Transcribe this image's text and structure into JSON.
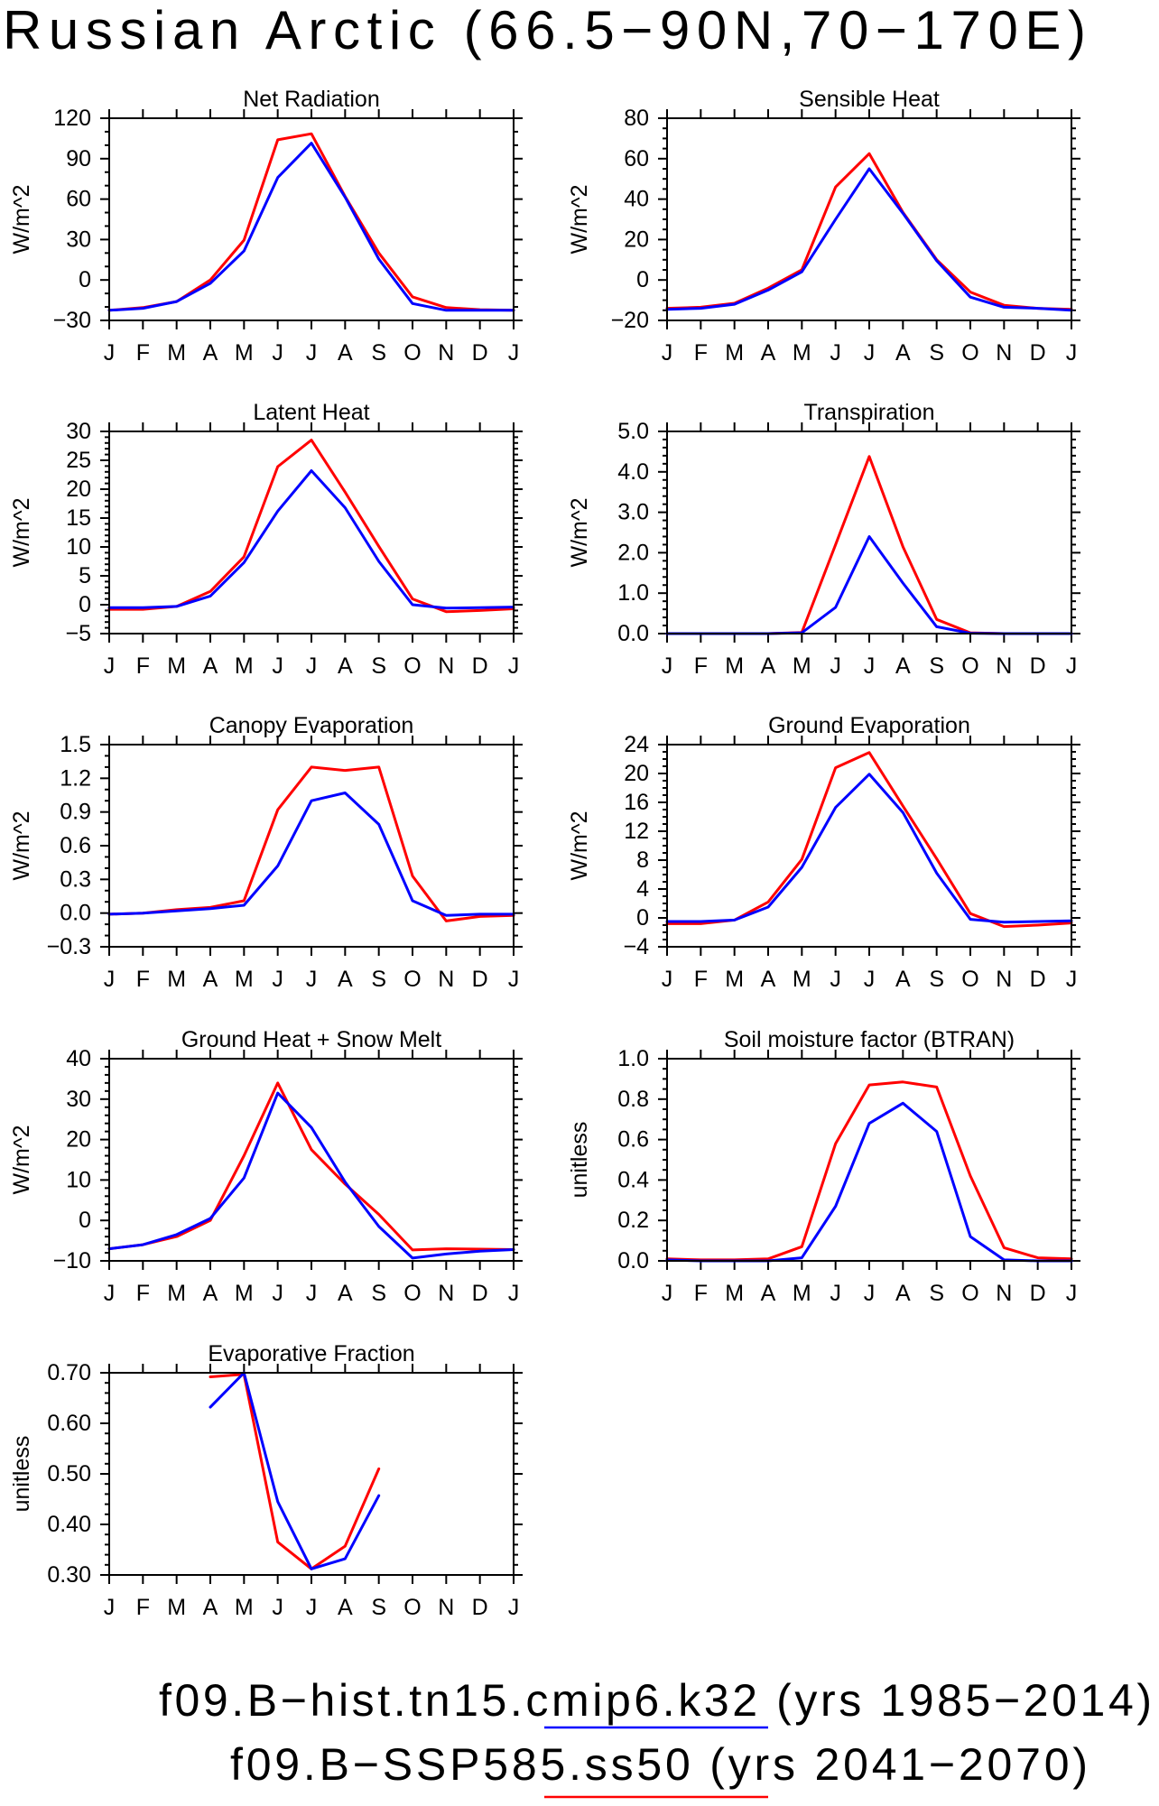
{
  "title": "Russian Arctic (66.5−90N,70−170E)",
  "legend": {
    "placement": "bottom",
    "entries": [
      {
        "label": "f09.B−hist.tn15.cmip6.k32 (yrs 1985−2014)",
        "color": "#0000ff"
      },
      {
        "label": "f09.B−SSP585.ss50 (yrs 2041−2070)",
        "color": "#ff0000"
      }
    ]
  },
  "chart_data": [
    {
      "type": "line",
      "title": "Net Radiation",
      "ylabel": "W/m^2",
      "categories": [
        "J",
        "F",
        "M",
        "A",
        "M",
        "J",
        "J",
        "A",
        "S",
        "O",
        "N",
        "D",
        "J"
      ],
      "ylim": [
        -30,
        120
      ],
      "yticks": [
        -30,
        0,
        30,
        60,
        90,
        120
      ],
      "ytick_labels": [
        "−30",
        "0",
        "30",
        "60",
        "90",
        "120"
      ],
      "grid": false,
      "series": [
        {
          "color": "#0000ff",
          "values": [
            -22.5,
            -21,
            -16,
            -2.5,
            21.5,
            76,
            101.5,
            61.5,
            15.5,
            -17.5,
            -22.5,
            -22.5,
            -22.5
          ]
        },
        {
          "color": "#ff0000",
          "values": [
            -22.5,
            -20.5,
            -16,
            0,
            29.5,
            104,
            108.5,
            62,
            20,
            -12.5,
            -20.5,
            -22,
            -22.5
          ]
        }
      ]
    },
    {
      "type": "line",
      "title": "Sensible Heat",
      "ylabel": "W/m^2",
      "categories": [
        "J",
        "F",
        "M",
        "A",
        "M",
        "J",
        "J",
        "A",
        "S",
        "O",
        "N",
        "D",
        "J"
      ],
      "ylim": [
        -20,
        80
      ],
      "yticks": [
        -20,
        0,
        20,
        40,
        60,
        80
      ],
      "ytick_labels": [
        "−20",
        "0",
        "20",
        "40",
        "60",
        "80"
      ],
      "grid": false,
      "series": [
        {
          "color": "#0000ff",
          "values": [
            -14.5,
            -14,
            -12,
            -5,
            4,
            30,
            55,
            33,
            9.5,
            -8.5,
            -13.5,
            -14,
            -15
          ]
        },
        {
          "color": "#ff0000",
          "values": [
            -14,
            -13.5,
            -11.5,
            -4,
            5,
            46,
            62.5,
            33.5,
            10,
            -6,
            -12.5,
            -14,
            -14.5
          ]
        }
      ]
    },
    {
      "type": "line",
      "title": "Latent Heat",
      "ylabel": "W/m^2",
      "categories": [
        "J",
        "F",
        "M",
        "A",
        "M",
        "J",
        "J",
        "A",
        "S",
        "O",
        "N",
        "D",
        "J"
      ],
      "ylim": [
        -5,
        30
      ],
      "yticks": [
        -5,
        0,
        5,
        10,
        15,
        20,
        25,
        30
      ],
      "ytick_labels": [
        "−5",
        "0",
        "5",
        "10",
        "15",
        "20",
        "25",
        "30"
      ],
      "grid": false,
      "series": [
        {
          "color": "#0000ff",
          "values": [
            -0.5,
            -0.5,
            -0.3,
            1.5,
            7.3,
            16.2,
            23.2,
            16.8,
            7.5,
            0,
            -0.6,
            -0.5,
            -0.4
          ]
        },
        {
          "color": "#ff0000",
          "values": [
            -0.8,
            -0.8,
            -0.3,
            2.3,
            8.3,
            23.9,
            28.5,
            19.5,
            10.1,
            1,
            -1.2,
            -1.0,
            -0.7
          ]
        }
      ]
    },
    {
      "type": "line",
      "title": "Transpiration",
      "ylabel": "W/m^2",
      "categories": [
        "J",
        "F",
        "M",
        "A",
        "M",
        "J",
        "J",
        "A",
        "S",
        "O",
        "N",
        "D",
        "J"
      ],
      "ylim": [
        0,
        5
      ],
      "yticks": [
        0,
        1,
        2,
        3,
        4,
        5
      ],
      "ytick_labels": [
        "0.0",
        "1.0",
        "2.0",
        "3.0",
        "4.0",
        "5.0"
      ],
      "grid": false,
      "series": [
        {
          "color": "#0000ff",
          "values": [
            0,
            0,
            0,
            0,
            0.02,
            0.65,
            2.4,
            1.25,
            0.17,
            0.01,
            0,
            0,
            0
          ]
        },
        {
          "color": "#ff0000",
          "values": [
            0,
            0,
            0,
            0,
            0.03,
            2.2,
            4.38,
            2.15,
            0.35,
            0.02,
            0,
            0,
            0
          ]
        }
      ]
    },
    {
      "type": "line",
      "title": "Canopy Evaporation",
      "ylabel": "W/m^2",
      "categories": [
        "J",
        "F",
        "M",
        "A",
        "M",
        "J",
        "J",
        "A",
        "S",
        "O",
        "N",
        "D",
        "J"
      ],
      "ylim": [
        -0.3,
        1.5
      ],
      "yticks": [
        -0.3,
        0,
        0.3,
        0.6,
        0.9,
        1.2,
        1.5
      ],
      "ytick_labels": [
        "−0.3",
        "0.0",
        "0.3",
        "0.6",
        "0.9",
        "1.2",
        "1.5"
      ],
      "grid": false,
      "series": [
        {
          "color": "#0000ff",
          "values": [
            -0.01,
            0,
            0.02,
            0.04,
            0.07,
            0.42,
            1.0,
            1.07,
            0.79,
            0.11,
            -0.02,
            -0.01,
            -0.01
          ]
        },
        {
          "color": "#ff0000",
          "values": [
            -0.01,
            0,
            0.03,
            0.05,
            0.11,
            0.92,
            1.3,
            1.27,
            1.3,
            0.33,
            -0.07,
            -0.03,
            -0.02
          ]
        }
      ]
    },
    {
      "type": "line",
      "title": "Ground Evaporation",
      "ylabel": "W/m^2",
      "categories": [
        "J",
        "F",
        "M",
        "A",
        "M",
        "J",
        "J",
        "A",
        "S",
        "O",
        "N",
        "D",
        "J"
      ],
      "ylim": [
        -4,
        24
      ],
      "yticks": [
        -4,
        0,
        4,
        8,
        12,
        16,
        20,
        24
      ],
      "ytick_labels": [
        "−4",
        "0",
        "4",
        "8",
        "12",
        "16",
        "20",
        "24"
      ],
      "grid": false,
      "series": [
        {
          "color": "#0000ff",
          "values": [
            -0.5,
            -0.5,
            -0.3,
            1.5,
            7.0,
            15.3,
            19.9,
            14.6,
            6.2,
            -0.2,
            -0.6,
            -0.5,
            -0.4
          ]
        },
        {
          "color": "#ff0000",
          "values": [
            -0.8,
            -0.8,
            -0.3,
            2.2,
            8.1,
            20.8,
            22.9,
            15.5,
            8.2,
            0.6,
            -1.2,
            -1.0,
            -0.7
          ]
        }
      ]
    },
    {
      "type": "line",
      "title": "Ground Heat + Snow Melt",
      "ylabel": "W/m^2",
      "categories": [
        "J",
        "F",
        "M",
        "A",
        "M",
        "J",
        "J",
        "A",
        "S",
        "O",
        "N",
        "D",
        "J"
      ],
      "ylim": [
        -10,
        40
      ],
      "yticks": [
        -10,
        0,
        10,
        20,
        30,
        40
      ],
      "ytick_labels": [
        "−10",
        "0",
        "10",
        "20",
        "30",
        "40"
      ],
      "grid": false,
      "series": [
        {
          "color": "#0000ff",
          "values": [
            -7,
            -6,
            -3.5,
            0.5,
            10.5,
            31.5,
            23,
            9.5,
            -1.5,
            -9.3,
            -8.3,
            -7.6,
            -7.2
          ]
        },
        {
          "color": "#ff0000",
          "values": [
            -7,
            -6,
            -4,
            0,
            16,
            34,
            17.5,
            9,
            1.5,
            -7.3,
            -7,
            -7.1,
            -7.2
          ]
        }
      ]
    },
    {
      "type": "line",
      "title": "Soil moisture factor (BTRAN)",
      "ylabel": "unitless",
      "categories": [
        "J",
        "F",
        "M",
        "A",
        "M",
        "J",
        "J",
        "A",
        "S",
        "O",
        "N",
        "D",
        "J"
      ],
      "ylim": [
        0,
        1
      ],
      "yticks": [
        0,
        0.2,
        0.4,
        0.6,
        0.8,
        1.0
      ],
      "ytick_labels": [
        "0.0",
        "0.2",
        "0.4",
        "0.6",
        "0.8",
        "1.0"
      ],
      "grid": false,
      "series": [
        {
          "color": "#0000ff",
          "values": [
            0.005,
            0,
            0,
            0,
            0.015,
            0.27,
            0.68,
            0.78,
            0.64,
            0.12,
            0.005,
            0,
            0
          ]
        },
        {
          "color": "#ff0000",
          "values": [
            0.01,
            0.005,
            0.005,
            0.01,
            0.07,
            0.58,
            0.87,
            0.885,
            0.86,
            0.42,
            0.065,
            0.015,
            0.01
          ]
        }
      ]
    },
    {
      "type": "line",
      "title": "Evaporative Fraction",
      "ylabel": "unitless",
      "categories": [
        "J",
        "F",
        "M",
        "A",
        "M",
        "J",
        "J",
        "A",
        "S",
        "O",
        "N",
        "D",
        "J"
      ],
      "ylim": [
        0.3,
        0.7
      ],
      "yticks": [
        0.3,
        0.4,
        0.5,
        0.6,
        0.7
      ],
      "ytick_labels": [
        "0.30",
        "0.40",
        "0.50",
        "0.60",
        "0.70"
      ],
      "grid": false,
      "series": [
        {
          "color": "#0000ff",
          "values": [
            null,
            null,
            null,
            0.632,
            0.7,
            0.445,
            0.312,
            0.332,
            0.457,
            null,
            null,
            null,
            null
          ]
        },
        {
          "color": "#ff0000",
          "values": [
            null,
            null,
            null,
            0.692,
            0.697,
            0.365,
            0.312,
            0.357,
            0.51,
            null,
            null,
            null,
            null
          ]
        }
      ]
    }
  ]
}
